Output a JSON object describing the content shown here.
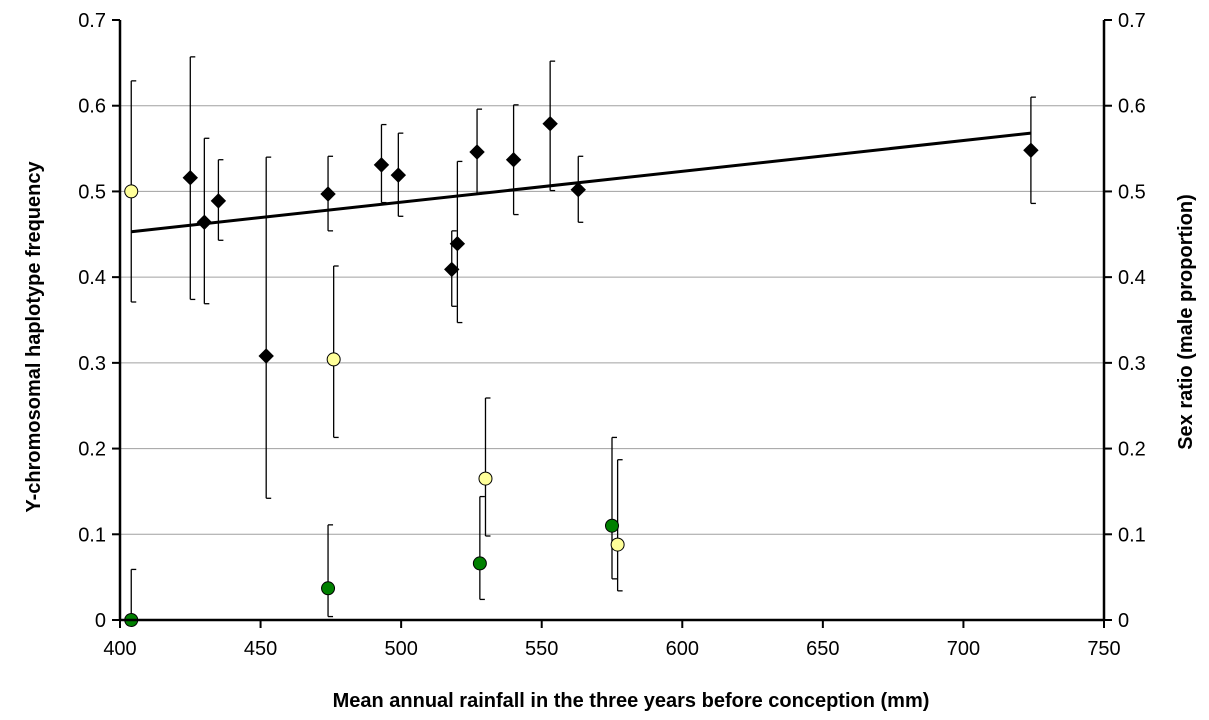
{
  "chart_data": {
    "type": "scatter",
    "title": "",
    "xlabel": "Mean annual rainfall in the three years before conception (mm)",
    "ylabel_left": "Y-chromosomal haplotype frequency",
    "ylabel_right": "Sex ratio (male proportion)",
    "xlim": [
      400,
      750
    ],
    "ylim": [
      0,
      0.7
    ],
    "x_ticks": [
      "400",
      "450",
      "500",
      "550",
      "600",
      "650",
      "700",
      "750"
    ],
    "y_ticks": [
      "0",
      "0.1",
      "0.2",
      "0.3",
      "0.4",
      "0.5",
      "0.6",
      "0.7"
    ],
    "grid": "horizontal",
    "legend": "none",
    "series": [
      {
        "marker": "diamond",
        "color": "#000000",
        "axis": "right",
        "points": [
          {
            "x": 425,
            "y": 0.516,
            "lo": 0.374,
            "hi": 0.657
          },
          {
            "x": 430,
            "y": 0.464,
            "lo": 0.369,
            "hi": 0.562
          },
          {
            "x": 435,
            "y": 0.489,
            "lo": 0.443,
            "hi": 0.537
          },
          {
            "x": 452,
            "y": 0.308,
            "lo": 0.142,
            "hi": 0.54
          },
          {
            "x": 474,
            "y": 0.497,
            "lo": 0.454,
            "hi": 0.541
          },
          {
            "x": 493,
            "y": 0.531,
            "lo": 0.487,
            "hi": 0.578
          },
          {
            "x": 499,
            "y": 0.519,
            "lo": 0.471,
            "hi": 0.568
          },
          {
            "x": 518,
            "y": 0.409,
            "lo": 0.366,
            "hi": 0.454
          },
          {
            "x": 520,
            "y": 0.439,
            "lo": 0.347,
            "hi": 0.535
          },
          {
            "x": 527,
            "y": 0.546,
            "lo": 0.497,
            "hi": 0.596
          },
          {
            "x": 540,
            "y": 0.537,
            "lo": 0.473,
            "hi": 0.601
          },
          {
            "x": 553,
            "y": 0.579,
            "lo": 0.501,
            "hi": 0.652
          },
          {
            "x": 563,
            "y": 0.502,
            "lo": 0.464,
            "hi": 0.541
          },
          {
            "x": 724,
            "y": 0.548,
            "lo": 0.486,
            "hi": 0.61
          }
        ]
      },
      {
        "marker": "circle",
        "color": "#ffff99",
        "axis": "left",
        "points": [
          {
            "x": 404,
            "y": 0.5,
            "lo": 0.371,
            "hi": 0.629
          },
          {
            "x": 476,
            "y": 0.304,
            "lo": 0.213,
            "hi": 0.413
          },
          {
            "x": 530,
            "y": 0.165,
            "lo": 0.098,
            "hi": 0.259
          },
          {
            "x": 577,
            "y": 0.088,
            "lo": 0.034,
            "hi": 0.187
          }
        ]
      },
      {
        "marker": "circle",
        "color": "#008000",
        "axis": "left",
        "points": [
          {
            "x": 404,
            "y": 0.0,
            "lo": 0.0,
            "hi": 0.059
          },
          {
            "x": 474,
            "y": 0.037,
            "lo": 0.004,
            "hi": 0.111
          },
          {
            "x": 528,
            "y": 0.066,
            "lo": 0.024,
            "hi": 0.144
          },
          {
            "x": 575,
            "y": 0.11,
            "lo": 0.048,
            "hi": 0.213
          }
        ]
      }
    ],
    "trendline": {
      "x": [
        404,
        724
      ],
      "y": [
        0.453,
        0.568
      ]
    }
  }
}
